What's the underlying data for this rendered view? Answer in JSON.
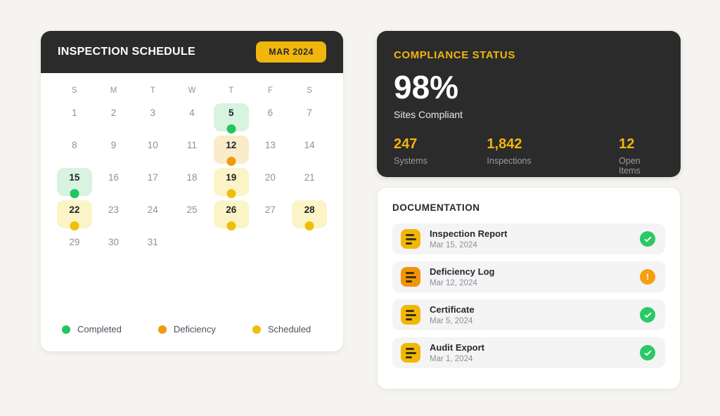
{
  "colors": {
    "accent": "#f1b60e",
    "dark": "#2b2b2b",
    "completed_dot": "#22c55e",
    "completed_bg": "#d8f3e0",
    "deficiency_dot": "#f29a0d",
    "deficiency_bg": "#faebc9",
    "scheduled_dot": "#efbe08",
    "scheduled_bg": "#fbf4c6",
    "status_complete": "#2bc964",
    "status_warning": "#f5a00f",
    "doc_icon_default": "#f2b705",
    "doc_icon_warning": "#f29406"
  },
  "icons": {
    "status_complete": "check-icon",
    "status_warning": "exclamation-icon",
    "warning_glyph": "!",
    "document": "document-lines-icon"
  },
  "inspection_schedule": {
    "title": "INSPECTION SCHEDULE",
    "badge": "MAR 2024",
    "day_headers": [
      "S",
      "M",
      "T",
      "W",
      "T",
      "F",
      "S"
    ],
    "days": [
      {
        "num": 1
      },
      {
        "num": 2
      },
      {
        "num": 3
      },
      {
        "num": 4
      },
      {
        "num": 5,
        "status": "completed"
      },
      {
        "num": 6
      },
      {
        "num": 7
      },
      {
        "num": 8
      },
      {
        "num": 9
      },
      {
        "num": 10
      },
      {
        "num": 11
      },
      {
        "num": 12,
        "status": "deficiency"
      },
      {
        "num": 13
      },
      {
        "num": 14
      },
      {
        "num": 15,
        "status": "completed"
      },
      {
        "num": 16
      },
      {
        "num": 17
      },
      {
        "num": 18
      },
      {
        "num": 19,
        "status": "scheduled"
      },
      {
        "num": 20
      },
      {
        "num": 21
      },
      {
        "num": 22,
        "status": "scheduled"
      },
      {
        "num": 23
      },
      {
        "num": 24
      },
      {
        "num": 25
      },
      {
        "num": 26,
        "status": "scheduled"
      },
      {
        "num": 27
      },
      {
        "num": 28,
        "status": "scheduled"
      },
      {
        "num": 29
      },
      {
        "num": 30
      },
      {
        "num": 31
      }
    ],
    "legend": [
      {
        "label": "Completed",
        "status": "completed"
      },
      {
        "label": "Deficiency",
        "status": "deficiency"
      },
      {
        "label": "Scheduled",
        "status": "scheduled"
      }
    ]
  },
  "compliance": {
    "title": "COMPLIANCE STATUS",
    "main_value": "98%",
    "main_label": "Sites Compliant",
    "stats": [
      {
        "value": "247",
        "label": "Systems"
      },
      {
        "value": "1,842",
        "label": "Inspections"
      },
      {
        "value": "12",
        "label": "Open Items"
      }
    ]
  },
  "documentation": {
    "title": "DOCUMENTATION",
    "items": [
      {
        "title": "Inspection Report",
        "date": "Mar 15, 2024",
        "status": "complete",
        "icon": "default"
      },
      {
        "title": "Deficiency Log",
        "date": "Mar 12, 2024",
        "status": "warning",
        "icon": "warning"
      },
      {
        "title": "Certificate",
        "date": "Mar 5, 2024",
        "status": "complete",
        "icon": "default"
      },
      {
        "title": "Audit Export",
        "date": "Mar 1, 2024",
        "status": "complete",
        "icon": "default"
      }
    ]
  }
}
